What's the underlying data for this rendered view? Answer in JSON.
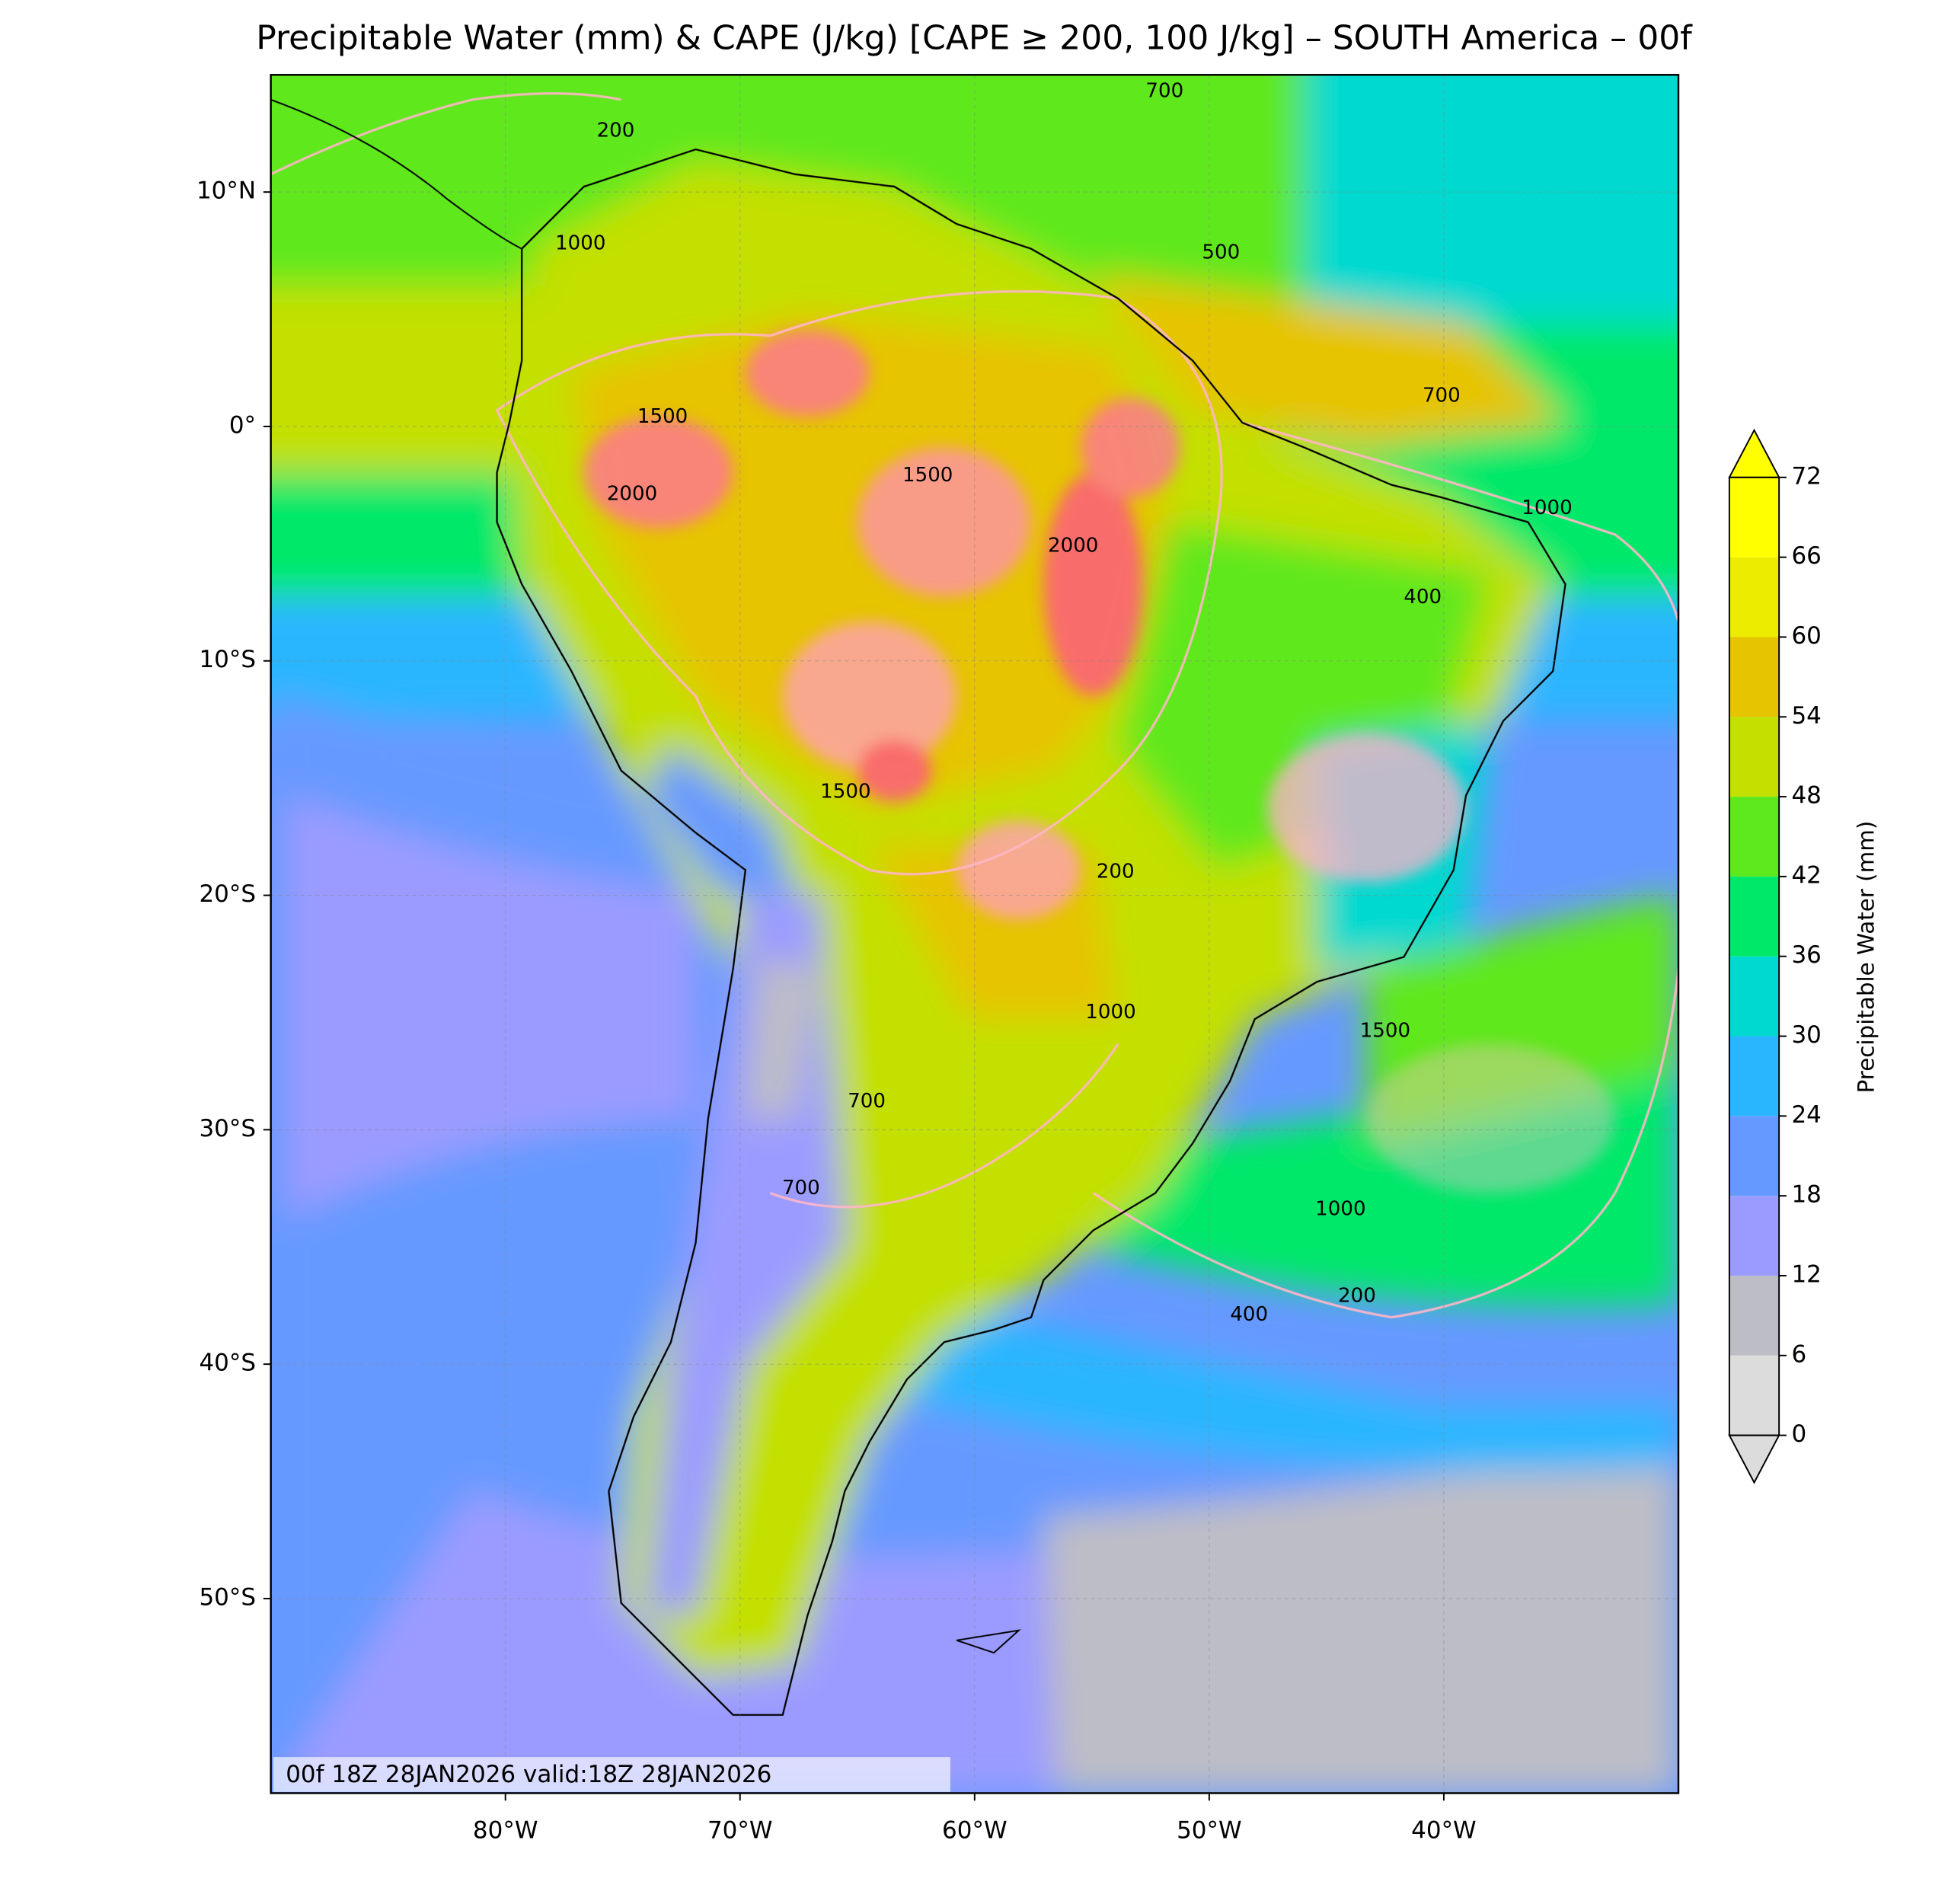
{
  "title": "Precipitable Water (mm) & CAPE (J/kg) [CAPE ≥ 200, 100 J/kg] – SOUTH America – 00f",
  "map": {
    "xlim": [
      -90,
      -30
    ],
    "ylim": [
      -58.3,
      15
    ],
    "xticks": [
      {
        "value": -80,
        "label": "80°W"
      },
      {
        "value": -70,
        "label": "70°W"
      },
      {
        "value": -60,
        "label": "60°W"
      },
      {
        "value": -50,
        "label": "50°W"
      },
      {
        "value": -40,
        "label": "40°W"
      }
    ],
    "yticks": [
      {
        "value": 10,
        "label": "10°N"
      },
      {
        "value": 0,
        "label": "0°"
      },
      {
        "value": -10,
        "label": "10°S"
      },
      {
        "value": -20,
        "label": "20°S"
      },
      {
        "value": -30,
        "label": "30°S"
      },
      {
        "value": -40,
        "label": "40°S"
      },
      {
        "value": -50,
        "label": "50°S"
      }
    ],
    "grid": true,
    "contour_labels": [
      {
        "value": 1000,
        "lon": -76.8,
        "lat": 7.8
      },
      {
        "value": 2000,
        "lon": -74.6,
        "lat": -2.9
      },
      {
        "value": 1500,
        "lon": -73.3,
        "lat": 0.4
      },
      {
        "value": 1500,
        "lon": -62.0,
        "lat": -2.1
      },
      {
        "value": 2000,
        "lon": -55.8,
        "lat": -5.1
      },
      {
        "value": 1500,
        "lon": -42.5,
        "lat": -25.8
      },
      {
        "value": 1000,
        "lon": -44.4,
        "lat": -33.4
      },
      {
        "value": 700,
        "lon": -51.9,
        "lat": 14.3
      },
      {
        "value": 500,
        "lon": -49.5,
        "lat": 7.4
      },
      {
        "value": 400,
        "lon": -48.3,
        "lat": -37.9
      },
      {
        "value": 200,
        "lon": -43.7,
        "lat": -37.1
      },
      {
        "value": 700,
        "lon": -67.4,
        "lat": -32.5
      },
      {
        "value": 1000,
        "lon": -54.2,
        "lat": -25.0
      },
      {
        "value": 700,
        "lon": -64.6,
        "lat": -28.8
      },
      {
        "value": 1500,
        "lon": -65.5,
        "lat": -15.6
      },
      {
        "value": 200,
        "lon": -54.0,
        "lat": -19.0
      },
      {
        "value": 400,
        "lon": -40.9,
        "lat": -7.3
      },
      {
        "value": 1000,
        "lon": -35.6,
        "lat": -3.5
      },
      {
        "value": 200,
        "lon": -75.3,
        "lat": 12.6
      },
      {
        "value": 700,
        "lon": -40.1,
        "lat": 1.3
      }
    ],
    "footer": "00f 18Z 28JAN2026 valid:18Z 28JAN2026"
  },
  "colorbar": {
    "label": "Precipitable Water (mm)",
    "ticks": [
      0,
      6,
      12,
      18,
      24,
      30,
      36,
      42,
      48,
      54,
      60,
      66,
      72
    ],
    "colors": [
      "#dcdcdc",
      "#bdbdc6",
      "#9b9bff",
      "#6699ff",
      "#29b6ff",
      "#00d9d0",
      "#00e86a",
      "#5ee81e",
      "#c3e000",
      "#e6c400",
      "#ecec00",
      "#ffff00"
    ],
    "extend": "both"
  }
}
